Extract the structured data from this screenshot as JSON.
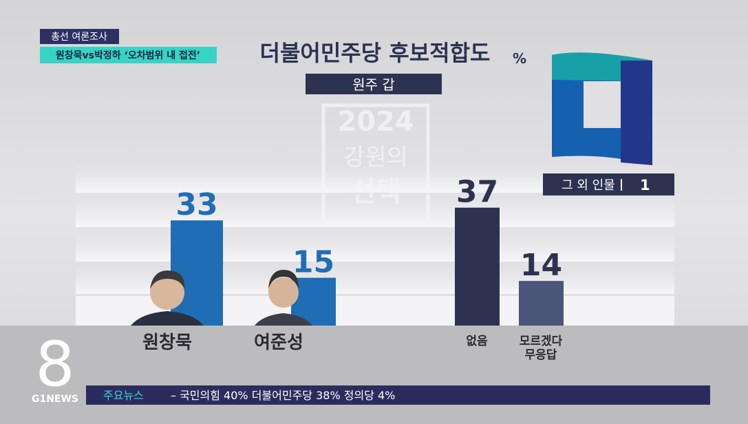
{
  "chart_data": {
    "type": "bar",
    "title": "더불어민주당 후보적합도",
    "unit": "%",
    "subtitle": "원주 갑",
    "categories": [
      "원창묵",
      "여준성",
      "없음",
      "모르겠다\n무응답"
    ],
    "values": [
      33,
      15,
      37,
      14
    ],
    "colors": [
      "#1f6db5",
      "#1f6db5",
      "#2c3250",
      "#4b5479"
    ],
    "other": {
      "label": "그 외 인물",
      "value": 1
    },
    "watermark": [
      "2024",
      "강원의",
      "선택"
    ]
  },
  "broadcast": {
    "tag": "총선 여론조사",
    "headline": "원창묵vs박정하 ‘오차범위 내 접전’",
    "channel_number": "8",
    "channel": "G1NEWS",
    "ticker_label": "주요뉴스",
    "ticker": "– 국민의힘 40% 더불어민주당 38% 정의당 4%"
  }
}
